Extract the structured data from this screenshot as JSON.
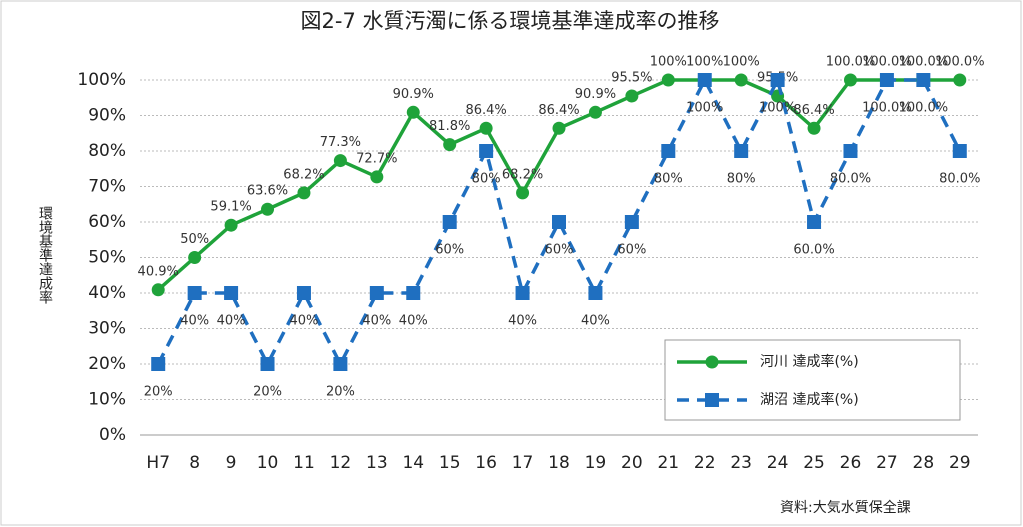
{
  "chart_data": {
    "type": "line",
    "title": "図2-7 水質汚濁に係る環境基準達成率の推移",
    "y_label": "環境基準達成率",
    "source": "資料:大気水質保全課",
    "categories": [
      "H7",
      "8",
      "9",
      "10",
      "11",
      "12",
      "13",
      "14",
      "15",
      "16",
      "17",
      "18",
      "19",
      "20",
      "21",
      "22",
      "23",
      "24",
      "25",
      "26",
      "27",
      "28",
      "29"
    ],
    "series": [
      {
        "name": "河川 達成率(%)",
        "color": "#1fa33a",
        "dashed": false,
        "marker": "circle",
        "values": [
          40.9,
          50,
          59.1,
          63.6,
          68.2,
          77.3,
          72.7,
          90.9,
          81.8,
          86.4,
          68.2,
          86.4,
          90.9,
          95.5,
          100,
          100,
          100,
          95.5,
          86.4,
          100,
          100,
          100,
          100
        ],
        "value_labels": [
          "40.9%",
          "50%",
          "59.1%",
          "63.6%",
          "68.2%",
          "77.3%",
          "72.7%",
          "90.9%",
          "81.8%",
          "86.4%",
          "68.2%",
          "86.4%",
          "90.9%",
          "95.5%",
          "100%",
          "100%",
          "100%",
          "95.5%",
          "86.4%",
          "100.0%",
          "100.0%",
          "100.0%",
          "100.0%"
        ]
      },
      {
        "name": "湖沼 達成率(%)",
        "color": "#1f6fc0",
        "dashed": true,
        "marker": "square",
        "values": [
          20,
          40,
          40,
          20,
          40,
          20,
          40,
          40,
          60,
          80,
          40,
          60,
          40,
          60,
          80,
          100,
          80,
          100,
          60,
          80,
          100,
          100,
          80
        ],
        "value_labels": [
          "20%",
          "40%",
          "40%",
          "20%",
          "40%",
          "20%",
          "40%",
          "40%",
          "60%",
          "80%",
          "40%",
          "60%",
          "40%",
          "60%",
          "80%",
          "100%",
          "80%",
          "100%",
          "60.0%",
          "80.0%",
          "100.0%",
          "100.0%",
          "80.0%"
        ]
      }
    ],
    "ylim": [
      0,
      100
    ],
    "yticks": [
      {
        "value": 0,
        "label": "0%"
      },
      {
        "value": 10,
        "label": "10%"
      },
      {
        "value": 20,
        "label": "20%"
      },
      {
        "value": 30,
        "label": "30%"
      },
      {
        "value": 40,
        "label": "40%"
      },
      {
        "value": 50,
        "label": "50%"
      },
      {
        "value": 60,
        "label": "60%"
      },
      {
        "value": 70,
        "label": "70%"
      },
      {
        "value": 80,
        "label": "80%"
      },
      {
        "value": 90,
        "label": "90%"
      },
      {
        "value": 100,
        "label": "100%"
      }
    ],
    "grid": true,
    "legend": "lower right"
  }
}
